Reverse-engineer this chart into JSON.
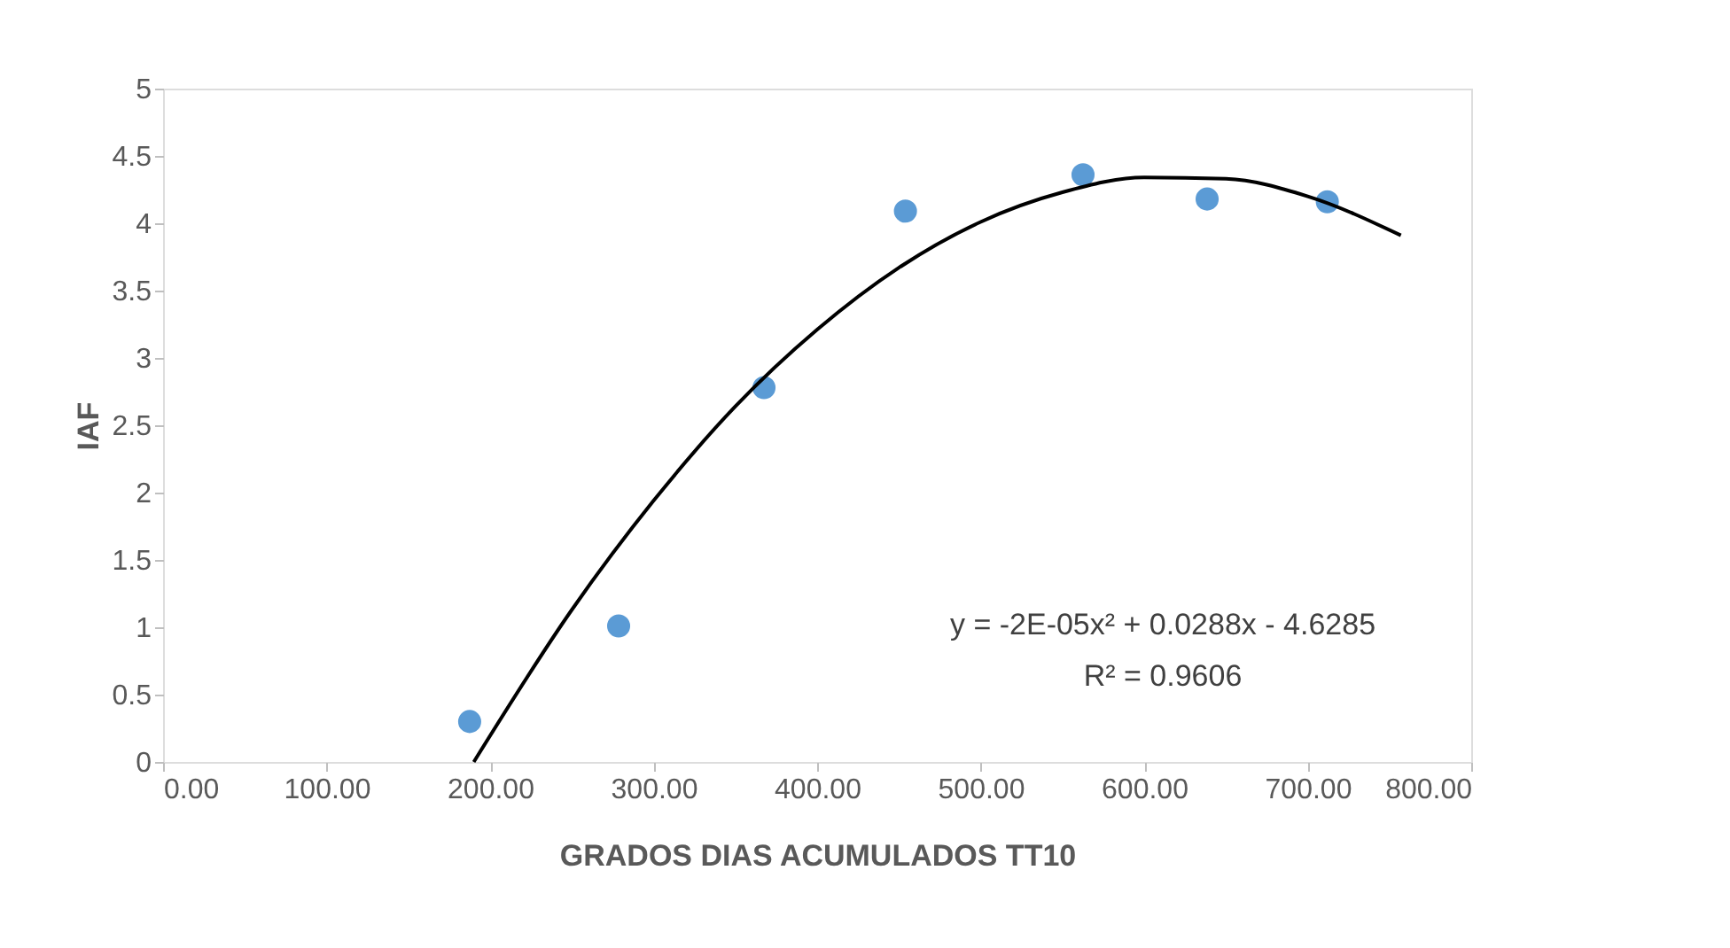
{
  "chart_data": {
    "type": "scatter",
    "xlabel": "GRADOS DIAS ACUMULADOS TT10",
    "ylabel": "IAF",
    "xlim": [
      0,
      800
    ],
    "ylim": [
      0,
      5
    ],
    "xticks": [
      {
        "value": 0,
        "label": "0.00"
      },
      {
        "value": 100,
        "label": "100.00"
      },
      {
        "value": 200,
        "label": "200.00"
      },
      {
        "value": 300,
        "label": "300.00"
      },
      {
        "value": 400,
        "label": "400.00"
      },
      {
        "value": 500,
        "label": "500.00"
      },
      {
        "value": 600,
        "label": "600.00"
      },
      {
        "value": 700,
        "label": "700.00"
      },
      {
        "value": 800,
        "label": "800.00"
      }
    ],
    "yticks": [
      0,
      0.5,
      1,
      1.5,
      2,
      2.5,
      3,
      3.5,
      4,
      4.5,
      5
    ],
    "grid": false,
    "legend": false,
    "marker": "circle",
    "series": [
      {
        "color": "#5b9bd5",
        "x": [
          187.5,
          278.6,
          367.5,
          454,
          562.6,
          638.5,
          712
        ],
        "values": [
          0.3,
          1.01,
          2.78,
          4.09,
          4.36,
          4.18,
          4.16
        ]
      },
      {
        "type": "line",
        "color": "#000000",
        "line_style": "solid",
        "marker": "none",
        "x": [
          190,
          250,
          300,
          350,
          400,
          450,
          500,
          550,
          600,
          650,
          700,
          757
        ],
        "values": [
          0,
          1.13,
          1.94,
          2.64,
          3.21,
          3.67,
          4.01,
          4.23,
          4.34,
          4.33,
          4.2,
          3.91
        ]
      }
    ],
    "annotations": [
      "y = -2E-05x² + 0.0288x - 4.6285",
      "R² = 0.9606"
    ]
  }
}
